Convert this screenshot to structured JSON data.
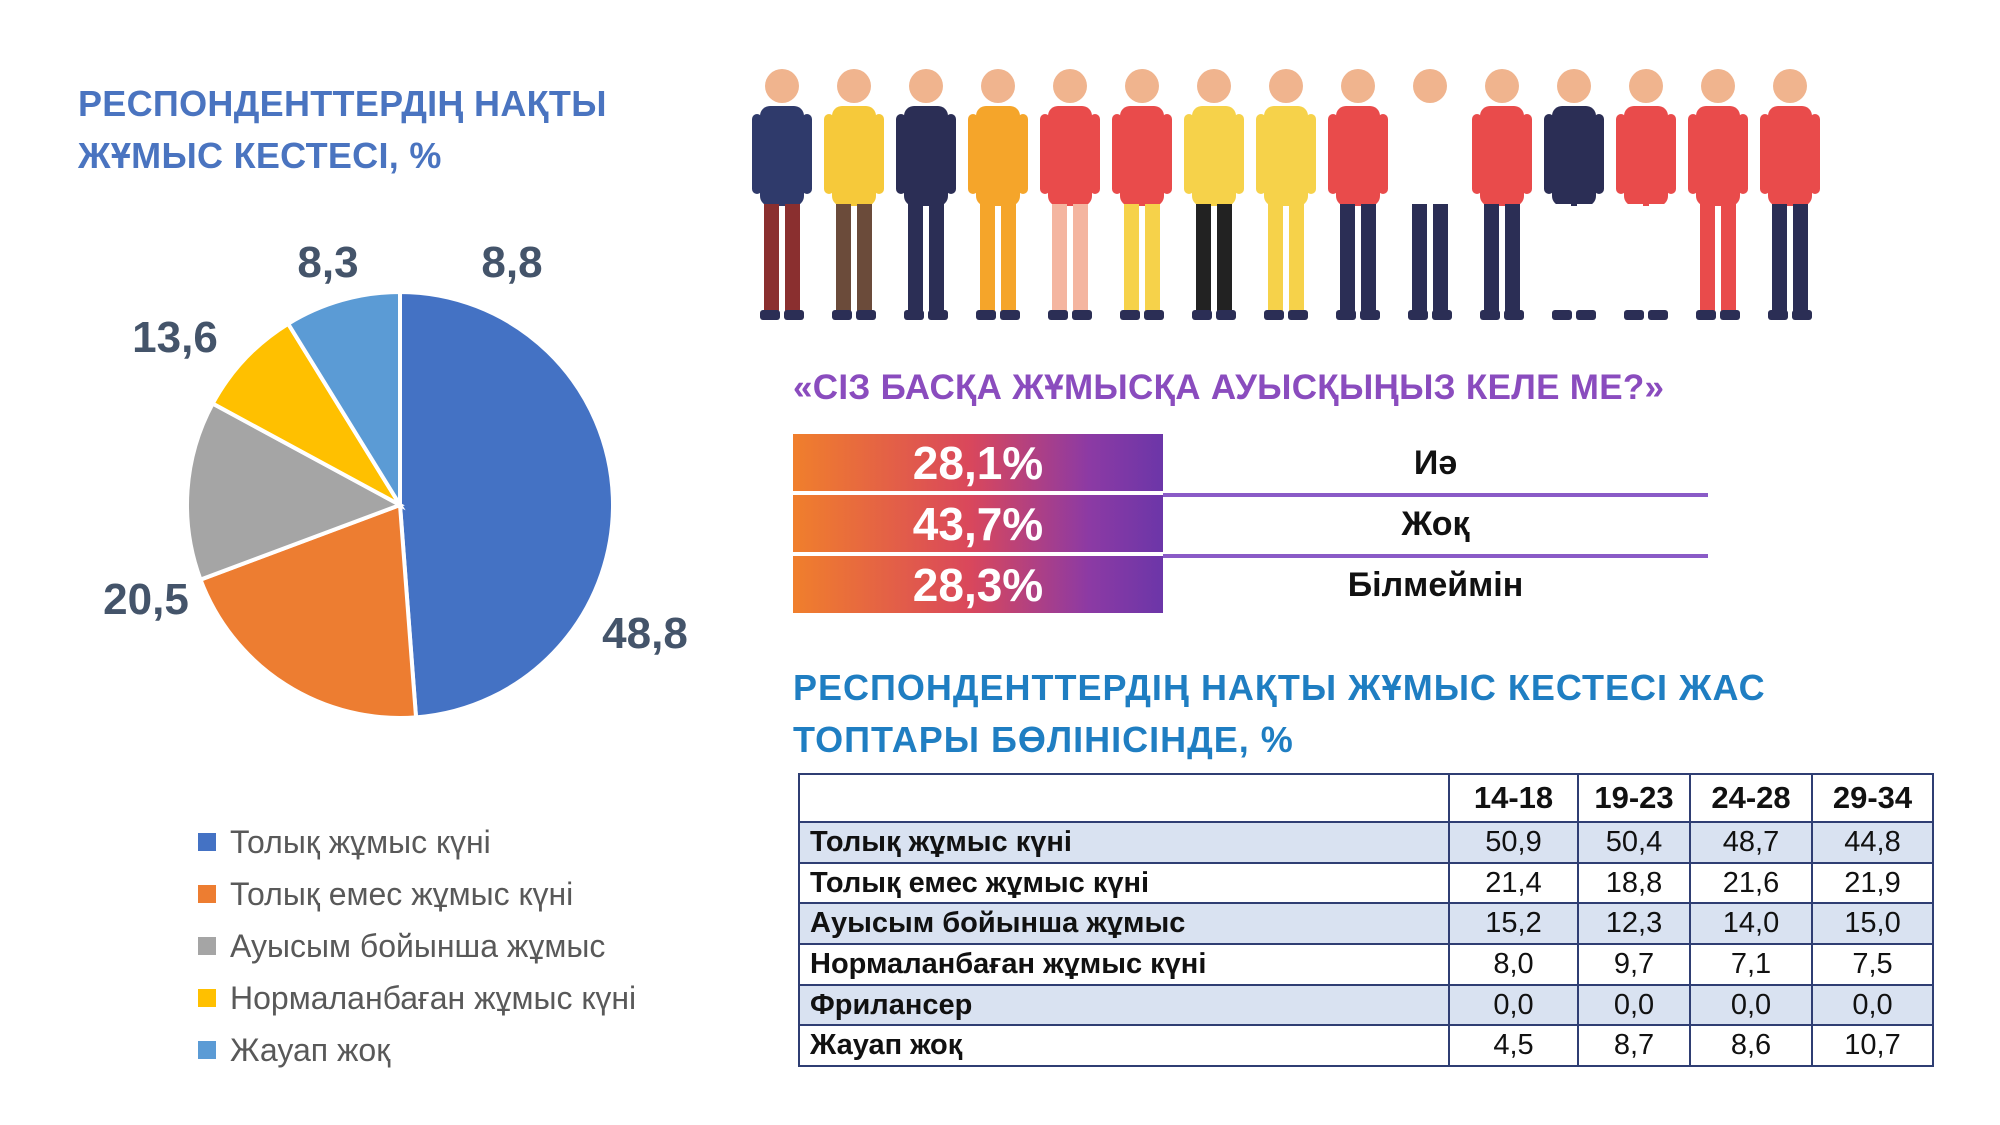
{
  "pie": {
    "title": "РЕСПОНДЕНТТЕРДІҢ НАҚТЫ\nЖҰМЫС КЕСТЕСІ, %"
  },
  "question": {
    "title": "«СІЗ БАСҚА ЖҰМЫСҚА АУЫСҚЫҢЫЗ КЕЛЕ МЕ?»",
    "answers": [
      {
        "value": "28,1%",
        "label": "Иә"
      },
      {
        "value": "43,7%",
        "label": "Жоқ"
      },
      {
        "value": "28,3%",
        "label": "Білмеймін"
      }
    ]
  },
  "table": {
    "title": "РЕСПОНДЕНТТЕРДІҢ НАҚТЫ ЖҰМЫС КЕСТЕСІ ЖАС\nТОПТАРЫ БӨЛІНІСІНДЕ, %",
    "headers": [
      "",
      "14-18",
      "19-23",
      "24-28",
      "29-34"
    ],
    "rows": [
      {
        "label": "Толық жұмыс күні",
        "values": [
          "50,9",
          "50,4",
          "48,7",
          "44,8"
        ]
      },
      {
        "label": "Толық емес жұмыс күні",
        "values": [
          "21,4",
          "18,8",
          "21,6",
          "21,9"
        ]
      },
      {
        "label": "Ауысым бойынша жұмыс",
        "values": [
          "15,2",
          "12,3",
          "14,0",
          "15,0"
        ]
      },
      {
        "label": "Нормаланбаған жұмыс күні",
        "values": [
          "8,0",
          "9,7",
          "7,1",
          "7,5"
        ]
      },
      {
        "label": "Фрилансер",
        "values": [
          "0,0",
          "0,0",
          "0,0",
          "0,0"
        ]
      },
      {
        "label": "Жауап жоқ",
        "values": [
          "4,5",
          "8,7",
          "8,6",
          "10,7"
        ]
      }
    ]
  },
  "chart_data": [
    {
      "type": "pie",
      "title": "РЕСПОНДЕНТТЕРДІҢ НАҚТЫ ЖҰМЫС КЕСТЕСІ, %",
      "legend_position": "bottom",
      "slices": [
        {
          "label": "Толық жұмыс күні",
          "value": 48.8,
          "display": "48,8",
          "color": "#4472c4"
        },
        {
          "label": "Толық емес жұмыс күні",
          "value": 20.5,
          "display": "20,5",
          "color": "#ed7d31"
        },
        {
          "label": "Ауысым бойынша жұмыс",
          "value": 13.6,
          "display": "13,6",
          "color": "#a5a5a5"
        },
        {
          "label": "Нормаланбаған жұмыс күні",
          "value": 8.3,
          "display": "8,3",
          "color": "#ffc000"
        },
        {
          "label": "Жауап жоқ",
          "value": 8.8,
          "display": "8,8",
          "color": "#5b9bd5"
        }
      ]
    },
    {
      "type": "bar",
      "title": "«СІЗ БАСҚА ЖҰМЫСҚА АУЫСҚЫҢЫЗ КЕЛЕ МЕ?»",
      "categories": [
        "Иә",
        "Жоқ",
        "Білмеймін"
      ],
      "values": [
        28.1,
        43.7,
        28.3
      ]
    },
    {
      "type": "table",
      "title": "РЕСПОНДЕНТТЕРДІҢ НАҚТЫ ЖҰМЫС КЕСТЕСІ ЖАС ТОПТАРЫ БӨЛІНІСІНДЕ, %",
      "columns": [
        "14-18",
        "19-23",
        "24-28",
        "29-34"
      ],
      "rows": [
        {
          "label": "Толық жұмыс күні",
          "values": [
            50.9,
            50.4,
            48.7,
            44.8
          ]
        },
        {
          "label": "Толық емес жұмыс күні",
          "values": [
            21.4,
            18.8,
            21.6,
            21.9
          ]
        },
        {
          "label": "Ауысым бойынша жұмыс",
          "values": [
            15.2,
            12.3,
            14.0,
            15.0
          ]
        },
        {
          "label": "Нормаланбаған жұмыс күні",
          "values": [
            8.0,
            9.7,
            7.1,
            7.5
          ]
        },
        {
          "label": "Фрилансер",
          "values": [
            0.0,
            0.0,
            0.0,
            0.0
          ]
        },
        {
          "label": "Жауап жоқ",
          "values": [
            4.5,
            8.7,
            8.6,
            10.7
          ]
        }
      ]
    }
  ]
}
